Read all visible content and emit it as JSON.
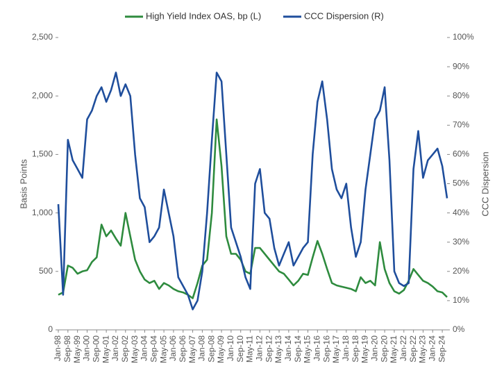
{
  "chart_data": {
    "type": "line",
    "categories": [
      "Jan-98",
      null,
      "Sep-98",
      null,
      "May-99",
      null,
      "Jan-00",
      null,
      "Sep-00",
      null,
      "May-01",
      null,
      "Jan-02",
      null,
      "Sep-02",
      null,
      "May-03",
      null,
      "Jan-04",
      null,
      "Sep-04",
      null,
      "May-05",
      null,
      "Jan-06",
      null,
      "Sep-06",
      null,
      "May-07",
      null,
      "Jan-08",
      null,
      "Sep-08",
      null,
      "May-09",
      null,
      "Jan-10",
      null,
      "Sep-10",
      null,
      "May-11",
      null,
      "Jan-12",
      null,
      "Sep-12",
      null,
      "May-13",
      null,
      "Jan-14",
      null,
      "Sep-14",
      null,
      "May-15",
      null,
      "Jan-16",
      null,
      "Sep-16",
      null,
      "May-17",
      null,
      "Jan-18",
      null,
      "Sep-18",
      null,
      "May-19",
      null,
      "Jan-20",
      null,
      "Sep-20",
      null,
      "May-21",
      null,
      "Jan-22",
      null,
      "Sep-22",
      null,
      "May-23",
      null,
      "Jan-24",
      null,
      "Sep-24",
      null
    ],
    "series": [
      {
        "name": "High Yield Index OAS, bp (L)",
        "color": "#2e8b3e",
        "axis": "y",
        "values": [
          300,
          320,
          550,
          530,
          480,
          500,
          510,
          580,
          620,
          900,
          800,
          850,
          780,
          720,
          1000,
          800,
          600,
          500,
          430,
          400,
          420,
          350,
          400,
          380,
          350,
          330,
          320,
          300,
          270,
          400,
          550,
          600,
          1000,
          1800,
          1400,
          800,
          650,
          650,
          600,
          500,
          480,
          700,
          700,
          650,
          600,
          550,
          500,
          480,
          430,
          380,
          420,
          480,
          470,
          620,
          760,
          650,
          520,
          400,
          380,
          370,
          360,
          350,
          330,
          450,
          400,
          420,
          380,
          750,
          520,
          400,
          330,
          310,
          340,
          420,
          520,
          470,
          420,
          400,
          370,
          330,
          320,
          280
        ]
      },
      {
        "name": "CCC Dispersion (R)",
        "color": "#1f4e9c",
        "axis": "y2",
        "values": [
          43,
          12,
          65,
          58,
          55,
          52,
          72,
          75,
          80,
          83,
          78,
          82,
          88,
          80,
          84,
          80,
          60,
          45,
          42,
          30,
          32,
          35,
          48,
          40,
          32,
          18,
          15,
          12,
          7,
          10,
          20,
          40,
          65,
          88,
          85,
          60,
          35,
          30,
          25,
          18,
          14,
          50,
          55,
          40,
          38,
          28,
          22,
          26,
          30,
          22,
          25,
          28,
          30,
          60,
          78,
          85,
          72,
          55,
          48,
          45,
          50,
          35,
          25,
          30,
          48,
          60,
          72,
          75,
          83,
          58,
          20,
          16,
          15,
          16,
          55,
          68,
          52,
          58,
          60,
          62,
          56,
          45
        ]
      }
    ],
    "y_label": "Basis Points",
    "y2_label": "CCC Dispersion",
    "ylim": [
      0,
      2500
    ],
    "yticks": [
      0,
      500,
      {
        "value": 1000,
        "label": "1,000"
      },
      {
        "value": 1500,
        "label": "1,500"
      },
      {
        "value": 2000,
        "label": "2,000"
      },
      {
        "value": 2500,
        "label": "2,500"
      }
    ],
    "y2lim": [
      0,
      100
    ],
    "y2ticks": [
      {
        "value": 0,
        "label": "0%"
      },
      {
        "value": 10,
        "label": "10%"
      },
      {
        "value": 20,
        "label": "20%"
      },
      {
        "value": 30,
        "label": "30%"
      },
      {
        "value": 40,
        "label": "40%"
      },
      {
        "value": 50,
        "label": "50%"
      },
      {
        "value": 60,
        "label": "60%"
      },
      {
        "value": 70,
        "label": "70%"
      },
      {
        "value": 80,
        "label": "80%"
      },
      {
        "value": 90,
        "label": "90%"
      },
      {
        "value": 100,
        "label": "100%"
      }
    ],
    "grid": false,
    "legend": "top"
  }
}
